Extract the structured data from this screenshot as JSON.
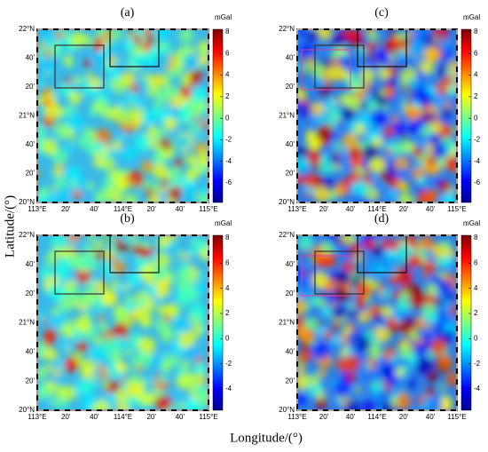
{
  "x_axis_label": "Longitude/(°)",
  "y_axis_label": "Latitude/(°)",
  "colorbar_unit": "mGal",
  "lon_ticks": [
    "113°E",
    "20'",
    "40'",
    "114°E",
    "20'",
    "40'",
    "115°E"
  ],
  "lat_ticks": [
    "22°N",
    "40'",
    "20'",
    "21°N",
    "40'",
    "20'",
    "20°N"
  ],
  "panels": [
    {
      "label": "(a)",
      "colorbar_ticks": [
        "8",
        "6",
        "4",
        "2",
        "0",
        "-2",
        "-4",
        "-6"
      ]
    },
    {
      "label": "(b)",
      "colorbar_ticks": [
        "8",
        "6",
        "4",
        "2",
        "0",
        "-2",
        "-4"
      ]
    },
    {
      "label": "(c)",
      "colorbar_ticks": [
        "8",
        "6",
        "4",
        "2",
        "0",
        "-2",
        "-4",
        "-6"
      ]
    },
    {
      "label": "(d)",
      "colorbar_ticks": [
        "8",
        "6",
        "4",
        "2",
        "0",
        "-2",
        "-4"
      ]
    }
  ]
}
